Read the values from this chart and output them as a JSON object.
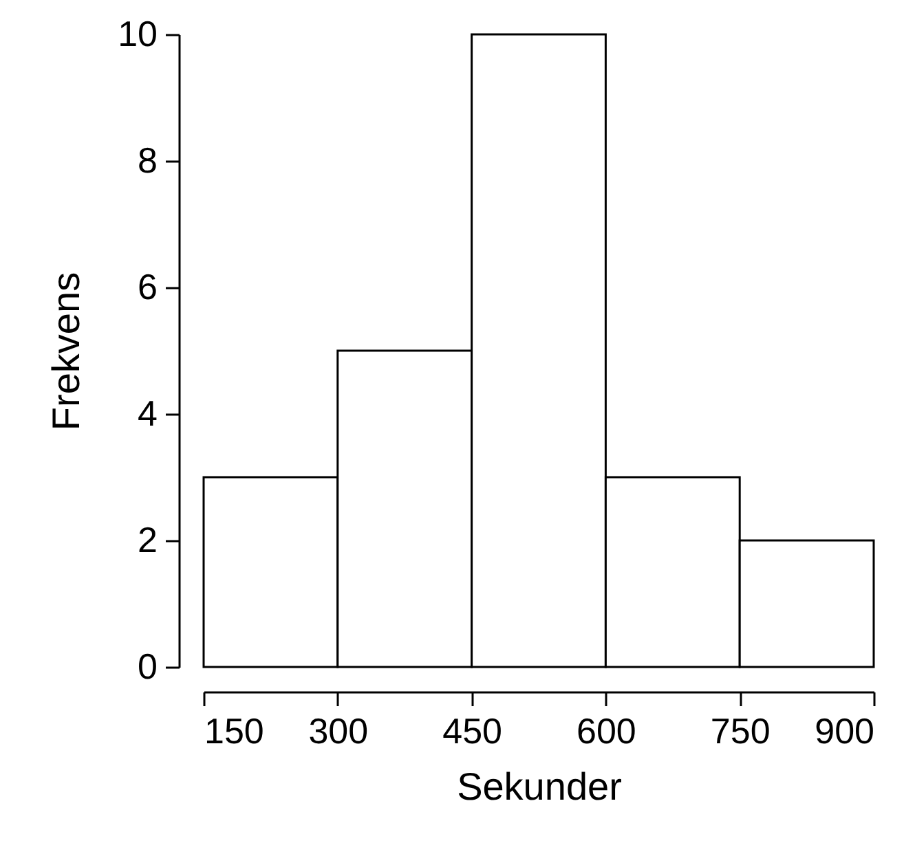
{
  "chart_data": {
    "type": "histogram",
    "xlabel": "Sekunder",
    "ylabel": "Frekvens",
    "bins": [
      150,
      300,
      450,
      600,
      750,
      900
    ],
    "values": [
      3,
      5,
      10,
      3,
      2
    ],
    "color": "#ffffff",
    "xlim": [
      150,
      900
    ],
    "ylim": [
      0,
      10
    ],
    "xticks": [
      150,
      300,
      450,
      600,
      750,
      900
    ],
    "yticks": [
      0,
      2,
      4,
      6,
      8,
      10
    ],
    "grid": false
  }
}
